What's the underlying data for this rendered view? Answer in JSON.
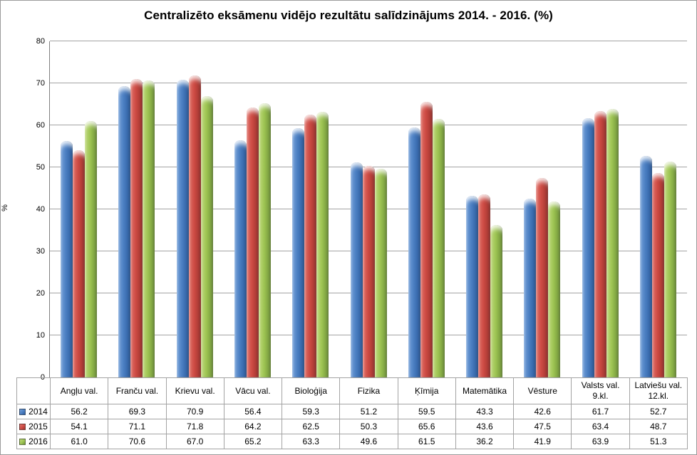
{
  "window": {
    "background": "#ffffff",
    "border_color": "#9b9b9b",
    "gridline_color": "#a3a3a3",
    "axis_color": "#808080",
    "table_border_color": "#a3a3a3"
  },
  "chart_data": {
    "type": "bar",
    "title": "Centralizēto eksāmenu vidējo rezultātu salīdzinājums 2014. - 2016. (%)",
    "xlabel": "",
    "ylabel": "%",
    "ylim": [
      0,
      80
    ],
    "yticks": [
      0,
      10,
      20,
      30,
      40,
      50,
      60,
      70,
      80
    ],
    "grid": true,
    "legend_position": "table-left",
    "categories": [
      "Angļu val.",
      "Franču val.",
      "Krievu val.",
      "Vācu val.",
      "Bioloģija",
      "Fizika",
      "Ķīmija",
      "Matemātika",
      "Vēsture",
      "Valsts val. 9.kl.",
      "Latviešu val. 12.kl."
    ],
    "series": [
      {
        "name": "2014",
        "color": "#4a7ec1",
        "color_light": "#74a0da",
        "color_dark": "#2b5a9b",
        "values": [
          56.2,
          69.3,
          70.9,
          56.4,
          59.3,
          51.2,
          59.5,
          43.3,
          42.6,
          61.7,
          52.7
        ]
      },
      {
        "name": "2015",
        "color": "#cd4a43",
        "color_light": "#e0726a",
        "color_dark": "#9a332e",
        "values": [
          54.1,
          71.1,
          71.8,
          64.2,
          62.5,
          50.3,
          65.6,
          43.6,
          47.5,
          63.4,
          48.7
        ]
      },
      {
        "name": "2016",
        "color": "#9dc452",
        "color_light": "#c0da7d",
        "color_dark": "#6f9239",
        "values": [
          61.0,
          70.6,
          67.0,
          65.2,
          63.3,
          49.6,
          61.5,
          36.2,
          41.9,
          63.9,
          51.3
        ]
      }
    ]
  }
}
